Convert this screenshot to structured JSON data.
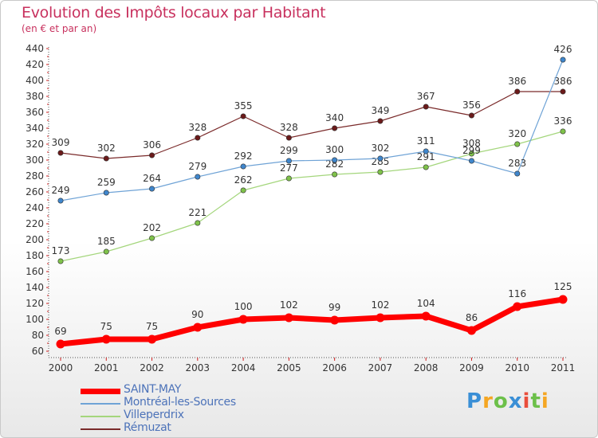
{
  "header": {
    "title": "Evolution des Impôts locaux par Habitant",
    "subtitle": "(en € et par an)"
  },
  "logo": {
    "text": "Proxiti",
    "colors": [
      "#3a8fd6",
      "#f5a623",
      "#6cc04a",
      "#3a8fd6",
      "#e94e3c",
      "#6cc04a",
      "#f5a623"
    ]
  },
  "chart_data": {
    "type": "line",
    "x": [
      "2000",
      "2001",
      "2002",
      "2003",
      "2004",
      "2005",
      "2006",
      "2007",
      "2008",
      "2009",
      "2010",
      "2011"
    ],
    "ylim": [
      60,
      440
    ],
    "yticks": [
      60,
      80,
      100,
      120,
      140,
      160,
      180,
      200,
      220,
      240,
      260,
      280,
      300,
      320,
      340,
      360,
      380,
      400,
      420,
      440
    ],
    "grid": false,
    "legend_position": "bottom-left",
    "series": [
      {
        "name": "Rémuzat",
        "color": "#7a2a2a",
        "marker": "#6b1a1a",
        "width": 1.2,
        "values": [
          309,
          302,
          306,
          328,
          355,
          328,
          340,
          349,
          367,
          356,
          386,
          386
        ]
      },
      {
        "name": "Villeperdrix",
        "color": "#a4d67c",
        "marker": "#7fc24a",
        "width": 1.2,
        "values": [
          173,
          185,
          202,
          221,
          262,
          277,
          282,
          285,
          291,
          308,
          320,
          336
        ]
      },
      {
        "name": "Montréal-les-Sources",
        "color": "#6fa3d6",
        "marker": "#3f86cc",
        "width": 1.2,
        "values": [
          249,
          259,
          264,
          279,
          292,
          299,
          300,
          302,
          311,
          299,
          283,
          426
        ]
      },
      {
        "name": "SAINT-MAY",
        "color": "#ff0000",
        "marker": "#ff0000",
        "width": 7,
        "values": [
          69,
          75,
          75,
          90,
          100,
          102,
          99,
          102,
          104,
          86,
          116,
          125
        ]
      }
    ],
    "labels": {
      "Rémuzat": [
        "309",
        "302",
        "306",
        "328",
        "355",
        "328",
        "340",
        "349",
        "367",
        "356",
        "386",
        "386"
      ],
      "Villeperdrix": [
        "173",
        "185",
        "202",
        "221",
        "262",
        "277",
        "282",
        "285",
        "291",
        "308",
        "320",
        "336"
      ],
      "Montréal-les-Sources": [
        "249",
        "259",
        "264",
        "279",
        "292",
        "299",
        "300",
        "302",
        "311",
        "299",
        "283",
        "426"
      ],
      "SAINT-MAY": [
        "69",
        "75",
        "75",
        "90",
        "100",
        "102",
        "99",
        "102",
        "104",
        "86",
        "116",
        "125"
      ]
    },
    "legend_order": [
      "SAINT-MAY",
      "Montréal-les-Sources",
      "Villeperdrix",
      "Rémuzat"
    ]
  }
}
